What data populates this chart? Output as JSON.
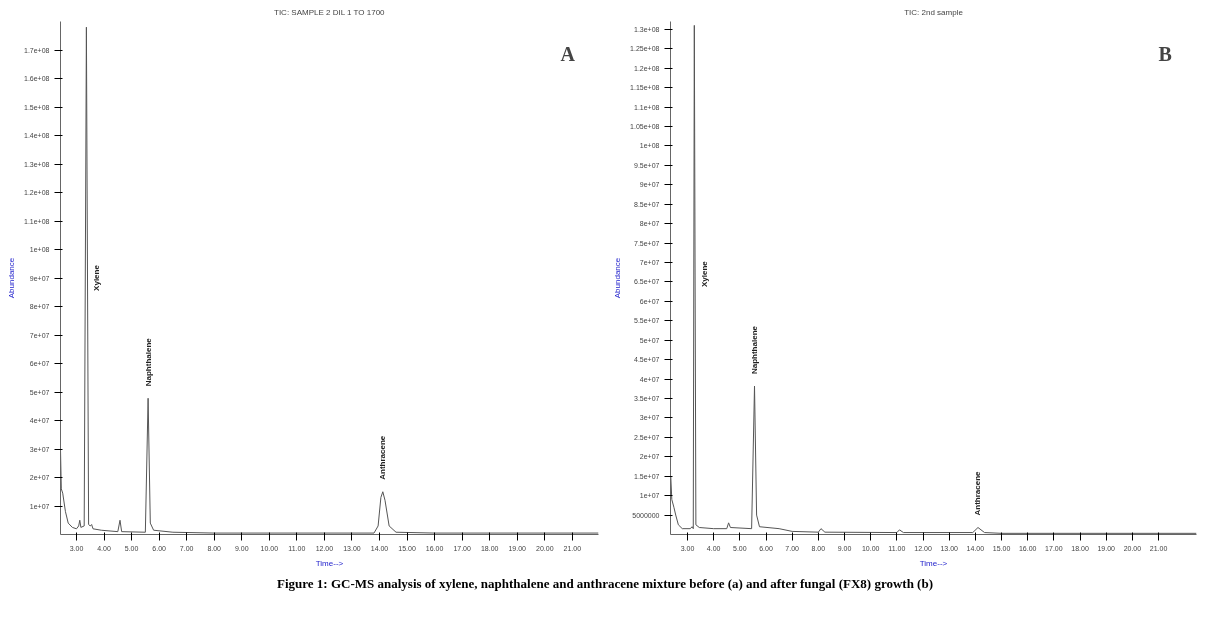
{
  "chart_data": [
    {
      "type": "line",
      "title": "TIC: SAMPLE 2 DIL 1 TO 1700",
      "xlabel": "Time-->",
      "ylabel": "Abundance",
      "grid": false,
      "marker": "none",
      "line_style": "solid",
      "xlim": [
        2.42,
        21.95
      ],
      "ylim": [
        0,
        180000000
      ],
      "xticks": [
        {
          "value": 3,
          "label": "3.00"
        },
        {
          "value": 4,
          "label": "4.00"
        },
        {
          "value": 5,
          "label": "5.00"
        },
        {
          "value": 6,
          "label": "6.00"
        },
        {
          "value": 7,
          "label": "7.00"
        },
        {
          "value": 8,
          "label": "8.00"
        },
        {
          "value": 9,
          "label": "9.00"
        },
        {
          "value": 10,
          "label": "10.00"
        },
        {
          "value": 11,
          "label": "11.00"
        },
        {
          "value": 12,
          "label": "12.00"
        },
        {
          "value": 13,
          "label": "13.00"
        },
        {
          "value": 14,
          "label": "14.00"
        },
        {
          "value": 15,
          "label": "15.00"
        },
        {
          "value": 16,
          "label": "16.00"
        },
        {
          "value": 17,
          "label": "17.00"
        },
        {
          "value": 18,
          "label": "18.00"
        },
        {
          "value": 19,
          "label": "19.00"
        },
        {
          "value": 20,
          "label": "20.00"
        },
        {
          "value": 21,
          "label": "21.00"
        }
      ],
      "yticks": [
        {
          "value": 10000000,
          "label": "1e+07"
        },
        {
          "value": 20000000,
          "label": "2e+07"
        },
        {
          "value": 30000000,
          "label": "3e+07"
        },
        {
          "value": 40000000,
          "label": "4e+07"
        },
        {
          "value": 50000000,
          "label": "5e+07"
        },
        {
          "value": 60000000,
          "label": "6e+07"
        },
        {
          "value": 70000000,
          "label": "7e+07"
        },
        {
          "value": 80000000,
          "label": "8e+07"
        },
        {
          "value": 90000000,
          "label": "9e+07"
        },
        {
          "value": 100000000,
          "label": "1e+08"
        },
        {
          "value": 110000000,
          "label": "1.1e+08"
        },
        {
          "value": 120000000,
          "label": "1.2e+08"
        },
        {
          "value": 130000000,
          "label": "1.3e+08"
        },
        {
          "value": 140000000,
          "label": "1.4e+08"
        },
        {
          "value": 150000000,
          "label": "1.5e+08"
        },
        {
          "value": 160000000,
          "label": "1.6e+08"
        },
        {
          "value": 170000000,
          "label": "1.7e+08"
        }
      ],
      "series": [
        {
          "color": "#555555",
          "x": [
            2.42,
            2.45,
            2.5,
            2.6,
            2.7,
            2.85,
            3.0,
            3.08,
            3.12,
            3.16,
            3.28,
            3.36,
            3.44,
            3.5,
            3.55,
            3.6,
            3.9,
            4.5,
            4.58,
            4.64,
            5.5,
            5.6,
            5.68,
            5.8,
            6.5,
            8,
            13.8,
            13.95,
            14.05,
            14.12,
            14.2,
            14.35,
            14.6,
            16,
            21.95
          ],
          "values": [
            29500000,
            16000000,
            14500000,
            8000000,
            4000000,
            2500000,
            2000000,
            3000000,
            5000000,
            2500000,
            3000000,
            178000000,
            3500000,
            3000000,
            3500000,
            2000000,
            1500000,
            1000000,
            5000000,
            1000000,
            800000,
            47800000,
            4000000,
            1500000,
            800000,
            500000,
            500000,
            3000000,
            13000000,
            15000000,
            12000000,
            3000000,
            800000,
            500000,
            500000
          ]
        }
      ],
      "annotations": [
        "A",
        {
          "text": "Xylene",
          "x": 3.4,
          "y": 90000000
        },
        {
          "text": "Naphthalene",
          "x": 5.6,
          "y": 47800000
        },
        {
          "text": "Anthracene",
          "x": 14.12,
          "y": 15000000
        },
        "Figure 1: GC-MS analysis of xylene, naphthalene and anthracene mixture before (a) and after fungal (FX8) growth (b)"
      ]
    },
    {
      "type": "line",
      "title": "TIC: 2nd sample",
      "xlabel": "Time-->",
      "ylabel": "Abundance",
      "grid": false,
      "marker": "none",
      "line_style": "solid",
      "xlim": [
        2.35,
        22.45
      ],
      "ylim": [
        0,
        132000000
      ],
      "xticks": [
        {
          "value": 3,
          "label": "3.00"
        },
        {
          "value": 4,
          "label": "4.00"
        },
        {
          "value": 5,
          "label": "5.00"
        },
        {
          "value": 6,
          "label": "6.00"
        },
        {
          "value": 7,
          "label": "7.00"
        },
        {
          "value": 8,
          "label": "8.00"
        },
        {
          "value": 9,
          "label": "9.00"
        },
        {
          "value": 10,
          "label": "10.00"
        },
        {
          "value": 11,
          "label": "11.00"
        },
        {
          "value": 12,
          "label": "12.00"
        },
        {
          "value": 13,
          "label": "13.00"
        },
        {
          "value": 14,
          "label": "14.00"
        },
        {
          "value": 15,
          "label": "15.00"
        },
        {
          "value": 16,
          "label": "16.00"
        },
        {
          "value": 17,
          "label": "17.00"
        },
        {
          "value": 18,
          "label": "18.00"
        },
        {
          "value": 19,
          "label": "19.00"
        },
        {
          "value": 20,
          "label": "20.00"
        },
        {
          "value": 21,
          "label": "21.00"
        }
      ],
      "yticks": [
        {
          "value": 5000000,
          "label": "5000000"
        },
        {
          "value": 10000000,
          "label": "1e+07"
        },
        {
          "value": 15000000,
          "label": "1.5e+07"
        },
        {
          "value": 20000000,
          "label": "2e+07"
        },
        {
          "value": 25000000,
          "label": "2.5e+07"
        },
        {
          "value": 30000000,
          "label": "3e+07"
        },
        {
          "value": 35000000,
          "label": "3.5e+07"
        },
        {
          "value": 40000000,
          "label": "4e+07"
        },
        {
          "value": 45000000,
          "label": "4.5e+07"
        },
        {
          "value": 50000000,
          "label": "5e+07"
        },
        {
          "value": 55000000,
          "label": "5.5e+07"
        },
        {
          "value": 60000000,
          "label": "6e+07"
        },
        {
          "value": 65000000,
          "label": "6.5e+07"
        },
        {
          "value": 70000000,
          "label": "7e+07"
        },
        {
          "value": 75000000,
          "label": "7.5e+07"
        },
        {
          "value": 80000000,
          "label": "8e+07"
        },
        {
          "value": 85000000,
          "label": "8.5e+07"
        },
        {
          "value": 90000000,
          "label": "9e+07"
        },
        {
          "value": 95000000,
          "label": "9.5e+07"
        },
        {
          "value": 100000000,
          "label": "1e+08"
        },
        {
          "value": 105000000,
          "label": "1.05e+08"
        },
        {
          "value": 110000000,
          "label": "1.1e+08"
        },
        {
          "value": 115000000,
          "label": "1.15e+08"
        },
        {
          "value": 120000000,
          "label": "1.2e+08"
        },
        {
          "value": 125000000,
          "label": "1.25e+08"
        },
        {
          "value": 130000000,
          "label": "1.3e+08"
        }
      ],
      "series": [
        {
          "color": "#555555",
          "x": [
            2.36,
            2.4,
            2.48,
            2.55,
            2.65,
            2.8,
            3.1,
            3.18,
            3.22,
            3.26,
            3.32,
            3.45,
            4.0,
            4.5,
            4.57,
            4.64,
            5.45,
            5.56,
            5.64,
            5.75,
            6.5,
            7.0,
            8.0,
            8.1,
            8.25,
            11.0,
            11.1,
            11.25,
            13.9,
            14.1,
            14.35,
            15,
            22.45
          ],
          "values": [
            15000000,
            9000000,
            7000000,
            5000000,
            2500000,
            1500000,
            1500000,
            2000000,
            1500000,
            131000000,
            2500000,
            1800000,
            1500000,
            1500000,
            3000000,
            1800000,
            1500000,
            38200000,
            5000000,
            2000000,
            1500000,
            800000,
            600000,
            1500000,
            600000,
            500000,
            1200000,
            500000,
            500000,
            1800000,
            500000,
            300000,
            300000
          ]
        }
      ],
      "annotations": [
        "B",
        {
          "text": "Xylene",
          "x": 3.29,
          "y": 67000000
        },
        {
          "text": "Naphthalene",
          "x": 5.56,
          "y": 38200000
        },
        {
          "text": "Anthracene",
          "x": 14.1,
          "y": 1800000
        }
      ]
    }
  ]
}
